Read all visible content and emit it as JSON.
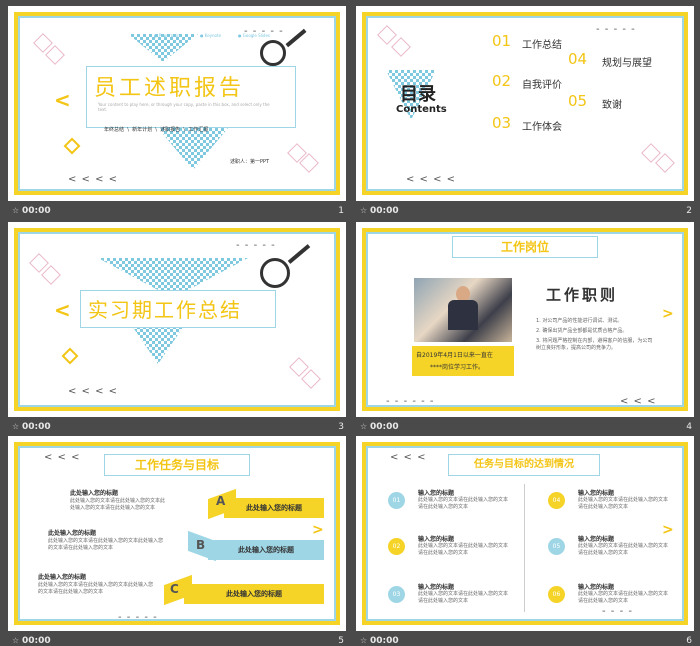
{
  "colors": {
    "accent_yellow": "#f5d327",
    "accent_blue": "#9fd6e6",
    "background": "#4a4a4a"
  },
  "slides": [
    {
      "number": "1",
      "time": "00:00",
      "title": "员工述职报告",
      "platforms": [
        "Powerpoint",
        "Keynote",
        "Google Slides"
      ],
      "description": "Your content to play here, or through your copy, paste in this box, and select only the text.",
      "menu": [
        "年终总结",
        "新年计划",
        "述职报告",
        "工作汇报"
      ],
      "reporter": "述职人：第一PPT"
    },
    {
      "number": "2",
      "time": "00:00",
      "heading": "目录",
      "heading_en": "Contents",
      "items": [
        {
          "num": "01",
          "label": "工作总结"
        },
        {
          "num": "02",
          "label": "自我评价"
        },
        {
          "num": "03",
          "label": "工作体会"
        },
        {
          "num": "04",
          "label": "规划与展望"
        },
        {
          "num": "05",
          "label": "致谢"
        }
      ]
    },
    {
      "number": "3",
      "time": "00:00",
      "title": "实习期工作总结"
    },
    {
      "number": "4",
      "time": "00:00",
      "banner": "工作岗位",
      "heading": "工作职则",
      "caption": [
        "自2019年4月1日以来一直在",
        "****岗位学习工作。"
      ],
      "bullets": [
        "1.  对公司产品的性能进行调试、测试。",
        "2.  确保出货产品全部都是优质合格产品。",
        "3.  将问题严格控制在内部，避得客户的信服，为公司树立良好形象，提高公司的竞争力。"
      ]
    },
    {
      "number": "5",
      "time": "00:00",
      "banner": "工作任务与目标",
      "left_items": [
        {
          "title": "此处输入您的标题",
          "body": "此处输入您的文本请在此处输入您的文本此处输入您的文本请在此处输入您的文本"
        },
        {
          "title": "此处输入您的标题",
          "body": "此处输入您的文本请在此处输入您的文本此处输入您的文本请在此处输入您的文本"
        },
        {
          "title": "此处输入您的标题",
          "body": "此处输入您的文本请在此处输入您的文本此处输入您的文本请在此处输入您的文本"
        }
      ],
      "bands": [
        {
          "letter": "A",
          "label": "此处输入您的标题"
        },
        {
          "letter": "B",
          "label": "此处输入您的标题"
        },
        {
          "letter": "C",
          "label": "此处输入您的标题"
        }
      ]
    },
    {
      "number": "6",
      "time": "00:00",
      "banner": "任务与目标的达到情况",
      "items": [
        {
          "num": "01",
          "title": "输入您的标题",
          "body": "此处输入您的文本请在此处输入您的文本请在此处输入您的文本"
        },
        {
          "num": "02",
          "title": "输入您的标题",
          "body": "此处输入您的文本请在此处输入您的文本请在此处输入您的文本"
        },
        {
          "num": "03",
          "title": "输入您的标题",
          "body": "此处输入您的文本请在此处输入您的文本请在此处输入您的文本"
        },
        {
          "num": "04",
          "title": "输入您的标题",
          "body": "此处输入您的文本请在此处输入您的文本请在此处输入您的文本"
        },
        {
          "num": "05",
          "title": "输入您的标题",
          "body": "此处输入您的文本请在此处输入您的文本请在此处输入您的文本"
        },
        {
          "num": "06",
          "title": "输入您的标题",
          "body": "此处输入您的文本请在此处输入您的文本请在此处输入您的文本"
        }
      ]
    }
  ]
}
